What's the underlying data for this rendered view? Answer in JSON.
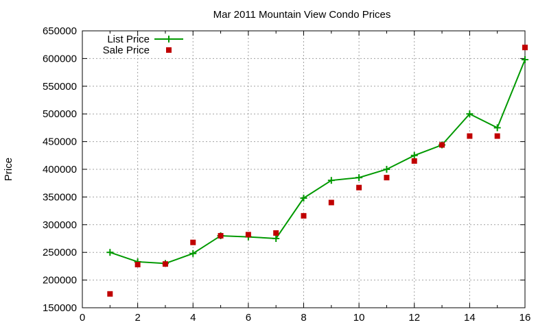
{
  "chart_data": {
    "type": "line",
    "title": "Mar 2011 Mountain View Condo Prices",
    "xlabel": "",
    "ylabel": "Price",
    "xlim": [
      0,
      16
    ],
    "ylim": [
      150000,
      650000
    ],
    "xticks": [
      "0",
      "2",
      "4",
      "6",
      "8",
      "10",
      "12",
      "14",
      "16"
    ],
    "yticks": [
      "150000",
      "200000",
      "250000",
      "300000",
      "350000",
      "400000",
      "450000",
      "500000",
      "550000",
      "600000",
      "650000"
    ],
    "grid": true,
    "legend_position": "top-left",
    "x": [
      1,
      2,
      3,
      4,
      5,
      6,
      7,
      8,
      9,
      10,
      11,
      12,
      13,
      14,
      15,
      16
    ],
    "series": [
      {
        "name": "List Price",
        "style": "line-points",
        "color": "#009900",
        "values": [
          250000,
          233000,
          230000,
          248000,
          280000,
          278000,
          275000,
          348000,
          380000,
          385000,
          400000,
          425000,
          444000,
          500000,
          475000,
          598000
        ]
      },
      {
        "name": "Sale Price",
        "style": "points",
        "color": "#c00000",
        "values": [
          175000,
          228000,
          229000,
          268000,
          280000,
          282000,
          285000,
          316000,
          340000,
          367000,
          385000,
          415000,
          444000,
          460000,
          460000,
          620000
        ]
      }
    ]
  }
}
